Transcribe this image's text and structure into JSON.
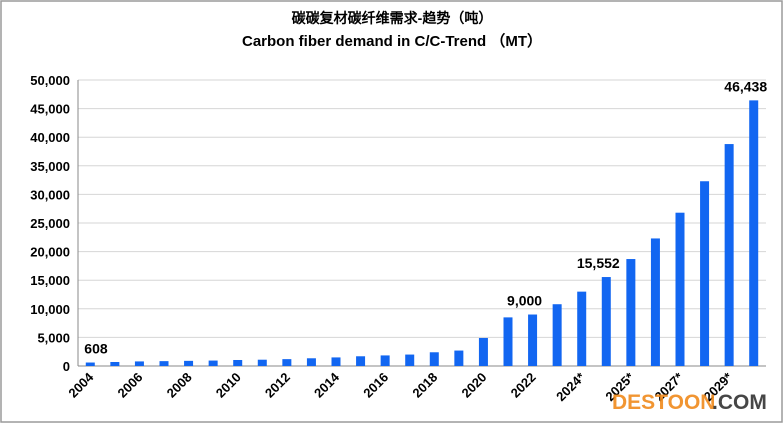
{
  "chart_data": {
    "type": "bar",
    "title": "碳碳复材碳纤维需求-趋势（吨）",
    "subtitle": "Carbon fiber demand in C/C-Trend （MT）",
    "categories": [
      "2004",
      null,
      "2006",
      null,
      "2008",
      null,
      "2010",
      null,
      "2012",
      null,
      "2014",
      null,
      "2016",
      null,
      "2018",
      null,
      "2020",
      null,
      "2022",
      null,
      "2024*",
      null,
      "2025*",
      null,
      "2027*",
      null,
      "2029*",
      null
    ],
    "values": [
      608,
      700,
      800,
      850,
      900,
      950,
      1050,
      1100,
      1200,
      1350,
      1500,
      1700,
      1850,
      2000,
      2400,
      2700,
      4900,
      8500,
      9000,
      10800,
      13000,
      15552,
      18700,
      22300,
      26800,
      32300,
      38800,
      46438
    ],
    "value_labels": [
      "608",
      null,
      null,
      null,
      null,
      null,
      null,
      null,
      null,
      null,
      null,
      null,
      null,
      null,
      null,
      null,
      null,
      null,
      "9,000",
      null,
      null,
      "15,552",
      null,
      null,
      null,
      null,
      null,
      "46,438"
    ],
    "color": "#1266f1",
    "ylim": [
      0,
      50000
    ],
    "yticks": [
      0,
      {
        "value": 5000,
        "label": "5,000"
      },
      {
        "value": 10000,
        "label": "10,000"
      },
      {
        "value": 15000,
        "label": "15,000"
      },
      {
        "value": 20000,
        "label": "20,000"
      },
      {
        "value": 25000,
        "label": "25,000"
      },
      {
        "value": 30000,
        "label": "30,000"
      },
      {
        "value": 35000,
        "label": "35,000"
      },
      {
        "value": 40000,
        "label": "40,000"
      },
      {
        "value": 45000,
        "label": "45,000"
      },
      {
        "value": 50000,
        "label": "50,000"
      }
    ],
    "grid": true,
    "watermark": [
      "DESTOON",
      ".COM"
    ]
  }
}
